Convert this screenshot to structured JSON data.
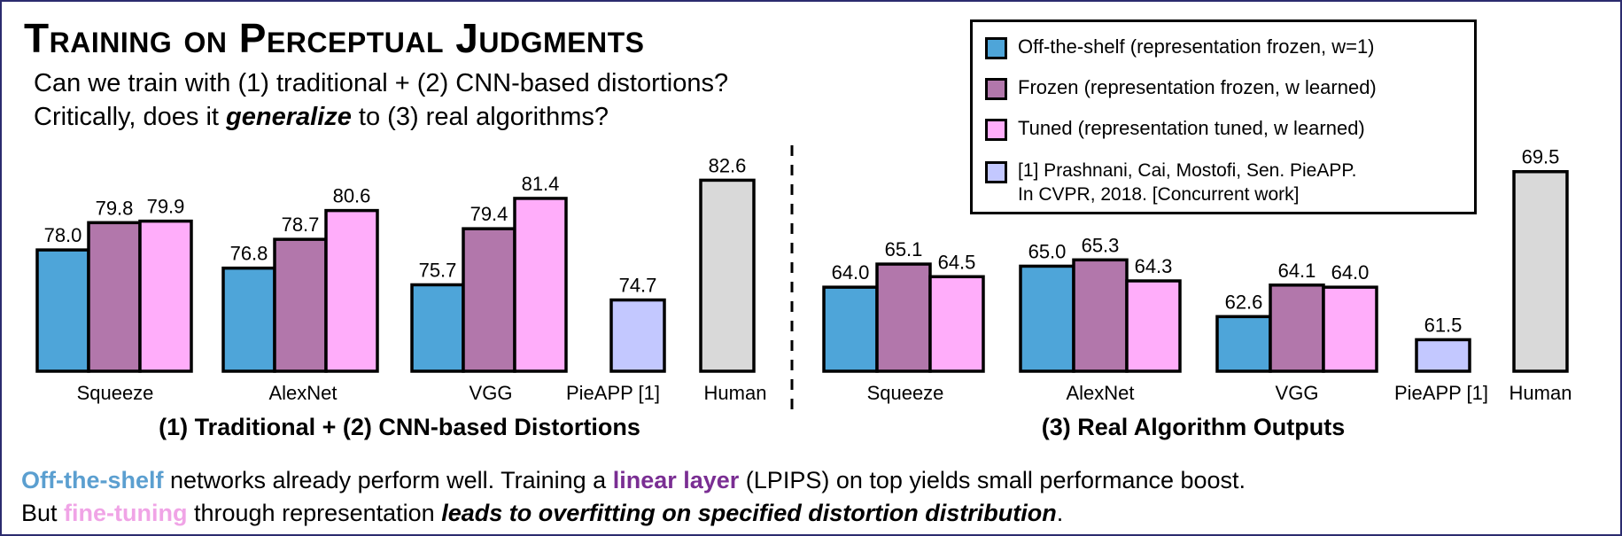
{
  "header": {
    "title": "Training on Perceptual Judgments",
    "question1": "Can we train with (1) traditional + (2) CNN-based distortions?",
    "question2_pre": "Critically, does it ",
    "question2_em": "generalize",
    "question2_post": " to (3) real algorithms?"
  },
  "legend": {
    "items": [
      {
        "label": "Off-the-shelf (representation frozen, w=1)"
      },
      {
        "label": "Frozen (representation frozen, w learned)"
      },
      {
        "label": "Tuned (representation tuned, w learned)"
      }
    ],
    "ref_line1_pre": "[1] Prashnani, Cai, Mostofi, Sen. ",
    "ref_line1_bold": "PieAPP.",
    "ref_line2": "In CVPR, 2018. [Concurrent work]"
  },
  "colors": {
    "off_the_shelf": "#4ea5d9",
    "frozen": "#b277ab",
    "tuned": "#ffadfa",
    "pieapp": "#c3c8ff",
    "human": "#d9d9d9",
    "text_offshelf": "#5b9fd0",
    "text_linear": "#7a2e93",
    "text_finetune": "#f0a4e6"
  },
  "chart_data": [
    {
      "type": "bar",
      "title": "(1) Traditional + (2) CNN-based Distortions",
      "categories": [
        "Squeeze",
        "AlexNet",
        "VGG"
      ],
      "series": [
        {
          "name": "Off-the-shelf",
          "values": [
            78.0,
            76.8,
            75.7
          ]
        },
        {
          "name": "Frozen",
          "values": [
            79.8,
            78.7,
            79.4
          ]
        },
        {
          "name": "Tuned",
          "values": [
            79.9,
            80.6,
            81.4
          ]
        }
      ],
      "extra_bars": [
        {
          "label": "PieAPP [1]",
          "value": 74.7
        },
        {
          "label": "Human",
          "value": 82.6
        }
      ],
      "value_labels": [
        "78.0",
        "79.8",
        "79.9",
        "76.8",
        "78.7",
        "80.6",
        "75.7",
        "79.4",
        "81.4",
        "74.7",
        "82.6"
      ],
      "ylim": [
        70.0,
        83.5
      ]
    },
    {
      "type": "bar",
      "title": "(3) Real Algorithm Outputs",
      "categories": [
        "Squeeze",
        "AlexNet",
        "VGG"
      ],
      "series": [
        {
          "name": "Off-the-shelf",
          "values": [
            64.0,
            65.0,
            62.6
          ]
        },
        {
          "name": "Frozen",
          "values": [
            65.1,
            65.3,
            64.1
          ]
        },
        {
          "name": "Tuned",
          "values": [
            64.5,
            64.3,
            64.0
          ]
        }
      ],
      "extra_bars": [
        {
          "label": "PieAPP [1]",
          "value": 61.5
        },
        {
          "label": "Human",
          "value": 69.5
        }
      ],
      "value_labels": [
        "64.0",
        "65.1",
        "64.5",
        "65.0",
        "65.3",
        "64.3",
        "62.6",
        "64.1",
        "64.0",
        "61.5",
        "69.5"
      ],
      "ylim": [
        60.0,
        69.7
      ]
    }
  ],
  "footer": {
    "line1_offshelf": "Off-the-shelf",
    "line1_mid": " networks already perform well. Training a ",
    "line1_linear": "linear layer",
    "line1_end": " (LPIPS) on top yields small performance boost.",
    "line2_pre": "But ",
    "line2_fine": "fine-tuning",
    "line2_mid": " through representation ",
    "line2_em": "leads to overfitting on specified distortion distribution",
    "line2_end": "."
  }
}
